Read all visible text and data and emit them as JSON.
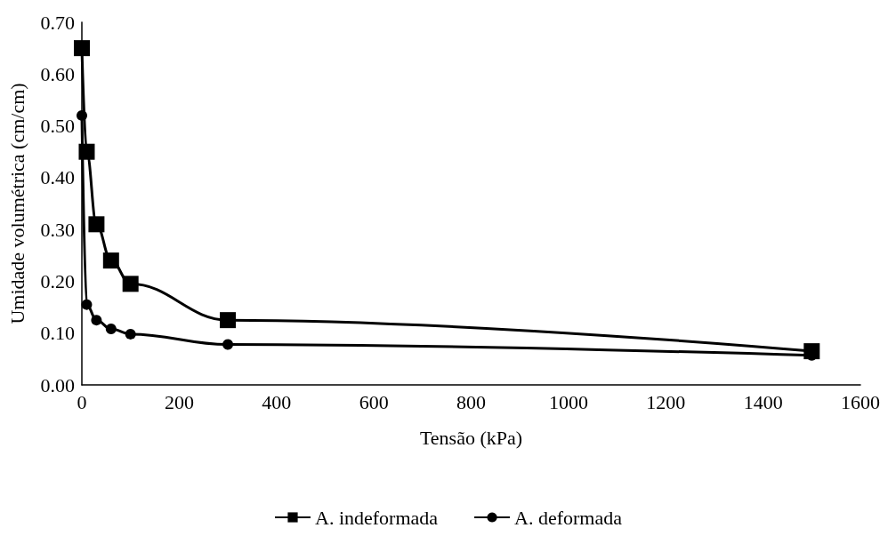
{
  "chart_data": {
    "type": "line",
    "xlabel": "Tensão (kPa)",
    "ylabel": "Umidade volumétrica (cm/cm)",
    "xlim": [
      0,
      1600
    ],
    "xticks": [
      0,
      200,
      400,
      600,
      800,
      1000,
      1200,
      1400,
      1600
    ],
    "ylim": [
      0,
      0.7
    ],
    "yticks": [
      {
        "value": 0,
        "label": "0.00"
      },
      {
        "value": 0.1,
        "label": "0.10"
      },
      {
        "value": 0.2,
        "label": "0.20"
      },
      {
        "value": 0.3,
        "label": "0.30"
      },
      {
        "value": 0.4,
        "label": "0.40"
      },
      {
        "value": 0.5,
        "label": "0.50"
      },
      {
        "value": 0.6,
        "label": "0.60"
      },
      {
        "value": 0.7,
        "label": "0.70"
      }
    ],
    "grid": false,
    "legend": "bottom",
    "line_style": "solid",
    "series": [
      {
        "name": "A. indeformada",
        "color": "#000000",
        "marker": "square",
        "x": [
          0,
          10,
          30,
          60,
          100,
          300,
          1500
        ],
        "values": [
          0.65,
          0.45,
          0.31,
          0.24,
          0.195,
          0.125,
          0.065
        ]
      },
      {
        "name": "A. deformada",
        "color": "#000000",
        "marker": "circle",
        "x": [
          0,
          10,
          30,
          60,
          100,
          300,
          1500
        ],
        "values": [
          0.52,
          0.155,
          0.125,
          0.108,
          0.098,
          0.078,
          0.057
        ]
      }
    ]
  }
}
